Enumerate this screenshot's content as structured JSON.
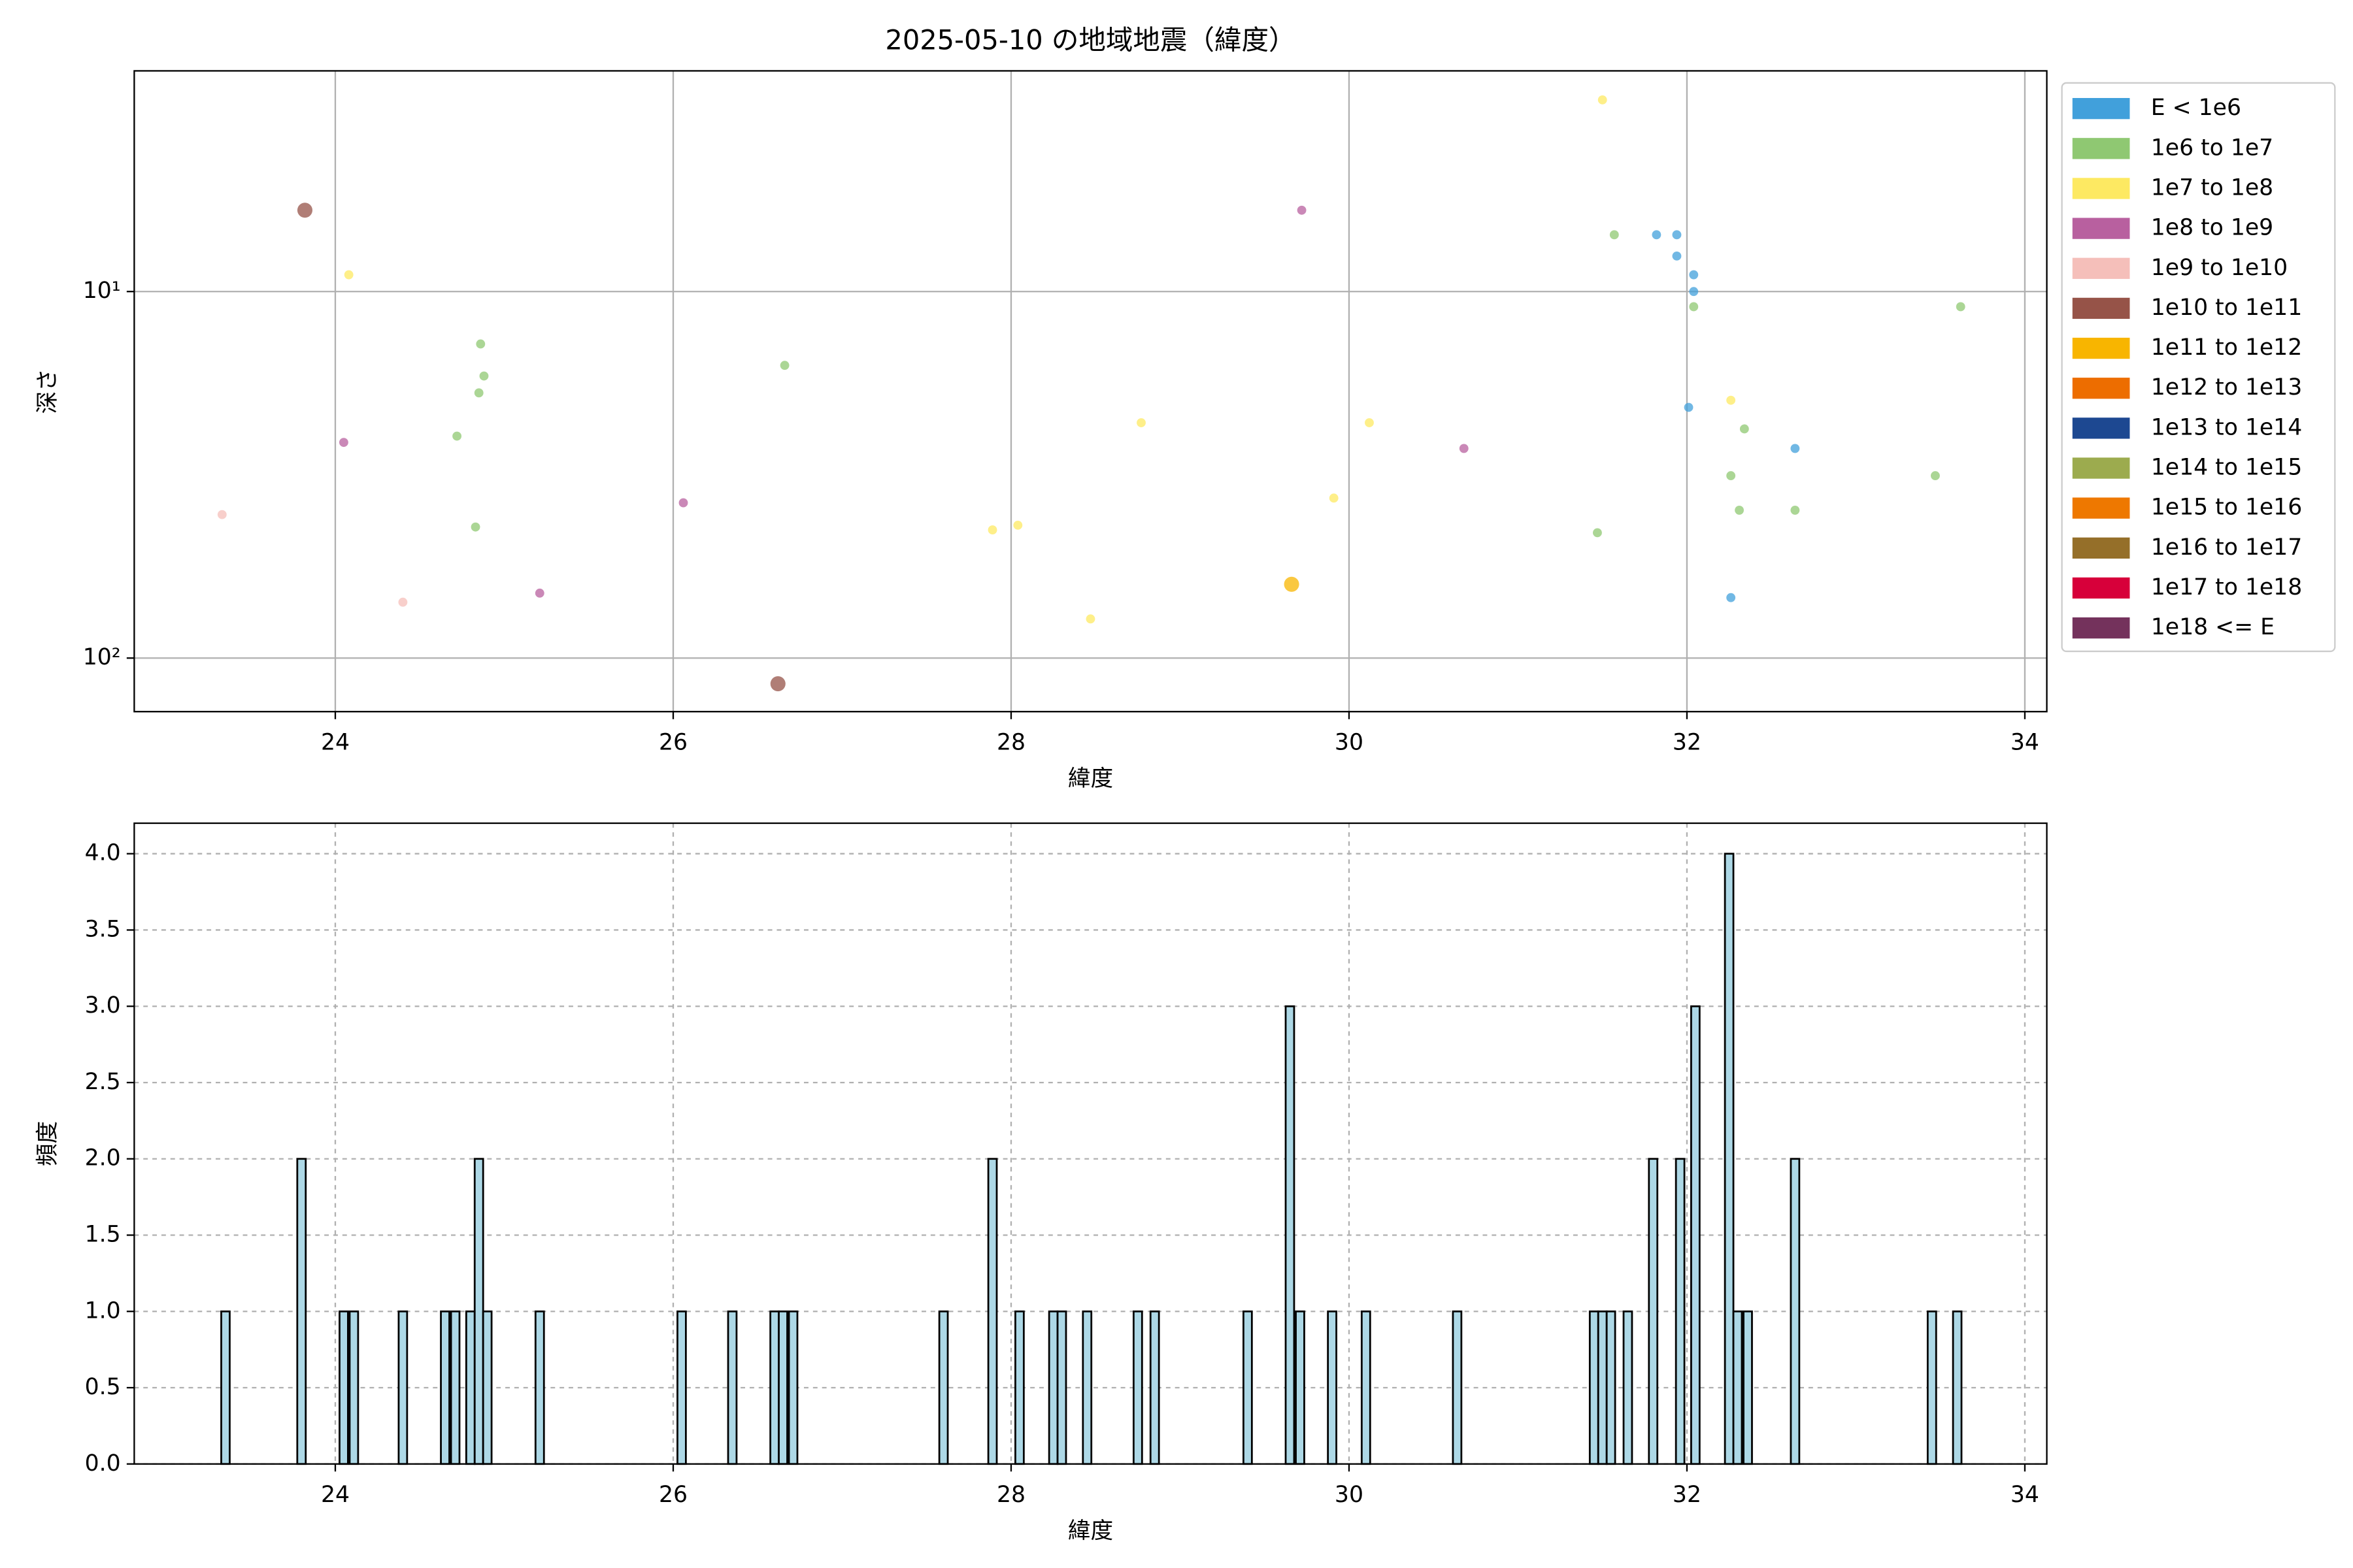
{
  "chart_data": [
    {
      "type": "scatter",
      "title": "2025-05-10 の地域地震（緯度）",
      "x_label": "緯度",
      "y_label": "深さ",
      "xlim": [
        22.81,
        34.13
      ],
      "ylim": [
        140,
        2.5
      ],
      "yscale": "log",
      "xticks": [
        24,
        26,
        28,
        30,
        32,
        34
      ],
      "yticks": [
        {
          "value": 10,
          "label": "10¹"
        },
        {
          "value": 100,
          "label": "10²"
        }
      ],
      "grid": true,
      "legend": "outside right",
      "series": [
        {
          "name": "E < 1e6",
          "color": "#41a0db",
          "x": [
            31.82,
            31.94,
            31.94,
            32.04,
            32.04,
            32.01,
            32.26,
            32.64
          ],
          "values": [
            7.0,
            7.0,
            8.0,
            9.0,
            10.0,
            20.7,
            68.4,
            26.8
          ]
        },
        {
          "name": "1e6 to 1e7",
          "color": "#8fc872",
          "x": [
            24.72,
            24.86,
            24.88,
            24.85,
            24.83,
            26.66,
            31.47,
            31.57,
            32.04,
            32.34,
            32.26,
            32.31,
            32.64,
            33.47,
            33.62
          ],
          "values": [
            24.8,
            13.9,
            17.0,
            18.9,
            43.9,
            15.9,
            45.5,
            7.0,
            11.0,
            23.7,
            31.8,
            39.5,
            39.5,
            31.8,
            11.0
          ]
        },
        {
          "name": "1e7 to 1e8",
          "color": "#fde962",
          "x": [
            24.08,
            27.89,
            28.04,
            28.47,
            28.77,
            29.91,
            30.12,
            31.5,
            32.26
          ],
          "values": [
            9.0,
            44.7,
            43.4,
            78.2,
            22.8,
            36.6,
            22.8,
            3.0,
            19.8
          ]
        },
        {
          "name": "1e8 to 1e9",
          "color": "#b8609f",
          "x": [
            24.05,
            25.21,
            26.06,
            29.72,
            30.68
          ],
          "values": [
            25.8,
            66.5,
            37.7,
            6.0,
            26.8
          ]
        },
        {
          "name": "1e9 to 1e10",
          "color": "#f5bfba",
          "x": [
            23.33,
            24.4
          ],
          "values": [
            40.6,
            70.4
          ]
        },
        {
          "name": "1e10 to 1e11",
          "color": "#965348",
          "x": [
            23.82,
            26.62
          ],
          "values": [
            6.0,
            117.5
          ]
        },
        {
          "name": "1e11 to 1e12",
          "color": "#f8b500",
          "x": [
            29.66
          ],
          "values": [
            62.9
          ]
        },
        {
          "name": "1e12 to 1e13",
          "color": "#ed6d00",
          "x": [],
          "values": []
        },
        {
          "name": "1e13 to 1e14",
          "color": "#1d4891",
          "x": [],
          "values": []
        },
        {
          "name": "1e14 to 1e15",
          "color": "#9cab4e",
          "x": [],
          "values": []
        },
        {
          "name": "1e15 to 1e16",
          "color": "#ee7800",
          "x": [],
          "values": []
        },
        {
          "name": "1e16 to 1e17",
          "color": "#956f29",
          "x": [],
          "values": []
        },
        {
          "name": "1e17 to 1e18",
          "color": "#d7003a",
          "x": [],
          "values": []
        },
        {
          "name": "1e18 <= E",
          "color": "#74325c",
          "x": [],
          "values": []
        }
      ]
    },
    {
      "type": "histogram",
      "x_label": "緯度",
      "y_label": "頻度",
      "color": "#add8e6",
      "xlim": [
        22.81,
        34.13
      ],
      "ylim": [
        0,
        4.2
      ],
      "xticks": [
        24,
        26,
        28,
        30,
        32,
        34
      ],
      "yticks": [
        {
          "value": 0,
          "label": "0.0"
        },
        {
          "value": 0.5,
          "label": "0.5"
        },
        {
          "value": 1,
          "label": "1.0"
        },
        {
          "value": 1.5,
          "label": "1.5"
        },
        {
          "value": 2,
          "label": "2.0"
        },
        {
          "value": 2.5,
          "label": "2.5"
        },
        {
          "value": 3,
          "label": "3.0"
        },
        {
          "value": 3.5,
          "label": "3.5"
        },
        {
          "value": 4,
          "label": "4.0"
        }
      ],
      "grid": true,
      "x": [
        23.35,
        23.8,
        24.05,
        24.11,
        24.4,
        24.65,
        24.71,
        24.8,
        24.85,
        24.9,
        25.21,
        26.05,
        26.35,
        26.6,
        26.65,
        26.71,
        27.6,
        27.89,
        28.05,
        28.25,
        28.3,
        28.45,
        28.75,
        28.85,
        29.4,
        29.65,
        29.71,
        29.9,
        30.1,
        30.64,
        31.45,
        31.5,
        31.55,
        31.65,
        31.8,
        31.96,
        32.05,
        32.25,
        32.3,
        32.36,
        32.64,
        33.45,
        33.6
      ],
      "values": [
        1,
        2,
        1,
        1,
        1,
        1,
        1,
        1,
        2,
        1,
        1,
        1,
        1,
        1,
        1,
        1,
        1,
        2,
        1,
        1,
        1,
        1,
        1,
        1,
        1,
        3,
        1,
        1,
        1,
        1,
        1,
        1,
        1,
        1,
        2,
        2,
        3,
        4,
        1,
        1,
        2,
        1,
        1
      ]
    }
  ]
}
